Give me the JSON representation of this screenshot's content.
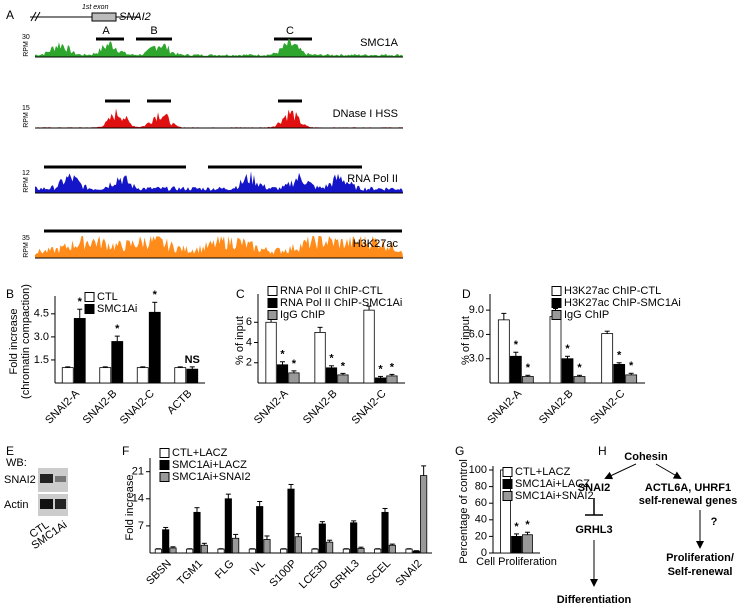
{
  "panel_labels": [
    "A",
    "B",
    "C",
    "D",
    "E",
    "F",
    "G",
    "H"
  ],
  "gene_header": {
    "exon_label": "1st exon",
    "gene": "SNAI2",
    "regions": [
      "A",
      "B",
      "C"
    ]
  },
  "tracks": [
    {
      "name": "SMC1A",
      "scale": 30,
      "unit": "RPM",
      "color": "#2ea62e"
    },
    {
      "name": "DNase I HSS",
      "scale": 15,
      "unit": "RPM",
      "color": "#e01010"
    },
    {
      "name": "RNA Pol II",
      "scale": 12,
      "unit": "RPM",
      "color": "#1414c8"
    },
    {
      "name": "H3K27ac",
      "scale": 35,
      "unit": "RPM",
      "color": "#ff8c1a"
    }
  ],
  "chart_data": [
    {
      "type": "bar",
      "ylabel": [
        "Fold increase",
        "(chromatin compaction)"
      ],
      "categories": [
        "SNAI2-A",
        "SNAI2-B",
        "SNAI2-C",
        "ACTB"
      ],
      "series": [
        {
          "name": "CTL",
          "color": "#ffffff",
          "values": [
            1,
            1,
            1,
            1
          ],
          "errors": [
            0.05,
            0.05,
            0.05,
            0.05
          ]
        },
        {
          "name": "SMC1Ai",
          "color": "#000000",
          "values": [
            4.2,
            2.7,
            4.6,
            0.9
          ],
          "errors": [
            0.6,
            0.35,
            0.65,
            0.15
          ],
          "significance": [
            "*",
            "*",
            "*",
            "NS"
          ]
        }
      ],
      "ylim": [
        0,
        5.4
      ],
      "yticks": [
        1.5,
        {
          "value": 3,
          "label": "3.0"
        },
        4.5
      ]
    },
    {
      "type": "bar",
      "ylabel": [
        "% of input"
      ],
      "categories": [
        "SNAI2-A",
        "SNAI2-B",
        "SNAI2-C"
      ],
      "series": [
        {
          "name": "RNA Pol II ChIP-CTL",
          "color": "#ffffff",
          "values": [
            6,
            5,
            7.2
          ],
          "errors": [
            0.4,
            0.5,
            0.4
          ]
        },
        {
          "name": "RNA Pol II ChIP-SMC1Ai",
          "color": "#000000",
          "values": [
            1.8,
            1.5,
            0.5
          ],
          "errors": [
            0.3,
            0.2,
            0.15
          ],
          "significance": [
            "*",
            "*",
            "*"
          ]
        },
        {
          "name": "IgG ChIP",
          "color": "#999999",
          "values": [
            1,
            0.8,
            0.7
          ],
          "errors": [
            0.2,
            0.15,
            0.15
          ],
          "significance": [
            "*",
            "*",
            "*"
          ]
        }
      ],
      "ylim": [
        0,
        8.4
      ],
      "yticks": [
        2,
        4,
        6
      ]
    },
    {
      "type": "bar",
      "ylabel": [
        "% of input"
      ],
      "categories": [
        "SNAI2-A",
        "SNAI2-B",
        "SNAI2-C"
      ],
      "series": [
        {
          "name": "H3K27ac ChIP-CTL",
          "color": "#ffffff",
          "values": [
            7.8,
            8.2,
            6.1
          ],
          "errors": [
            0.8,
            1,
            0.3
          ]
        },
        {
          "name": "H3K27ac ChIP-SMC1Ai",
          "color": "#000000",
          "values": [
            3.3,
            3,
            2.3
          ],
          "errors": [
            0.5,
            0.3,
            0.2
          ],
          "significance": [
            "*",
            "*",
            "*"
          ]
        },
        {
          "name": "IgG ChIP",
          "color": "#999999",
          "values": [
            0.8,
            0.8,
            1
          ],
          "errors": [
            0.15,
            0.15,
            0.2
          ],
          "significance": [
            "*",
            "*",
            "*"
          ]
        }
      ],
      "ylim": [
        0,
        10.5
      ],
      "yticks": [
        {
          "value": 3,
          "label": "3.0"
        },
        {
          "value": 6,
          "label": "6.0"
        },
        {
          "value": 9,
          "label": "9.0"
        }
      ]
    },
    {
      "type": "bar",
      "ylabel": [
        "Fold increase"
      ],
      "categories": [
        "SBSN",
        "TGM1",
        "FLG",
        "IVL",
        "S100P",
        "LCE3D",
        "GRHL3",
        "SCEL",
        "SNAI2"
      ],
      "series": [
        {
          "name": "CTL+LACZ",
          "color": "#ffffff",
          "values": [
            1,
            1,
            1,
            1,
            1,
            1,
            1,
            1,
            1
          ],
          "errors": [
            0.1,
            0.1,
            0.1,
            0.1,
            0.1,
            0.1,
            0.1,
            0.1,
            0.1
          ]
        },
        {
          "name": "SMC1Ai+LACZ",
          "color": "#000000",
          "values": [
            6,
            10.5,
            14,
            12,
            16.5,
            7.5,
            7.8,
            10.5,
            0.5
          ],
          "errors": [
            0.6,
            1.2,
            1.2,
            1.3,
            1.2,
            0.6,
            0.5,
            1,
            0.1
          ]
        },
        {
          "name": "SMC1Ai+SNAI2",
          "color": "#999999",
          "values": [
            1.3,
            2,
            3.8,
            3.5,
            4.2,
            2.8,
            1.2,
            2,
            20
          ],
          "errors": [
            0.3,
            0.5,
            1,
            0.9,
            0.8,
            0.5,
            0.3,
            0.3,
            2.5
          ]
        }
      ],
      "ylim": [
        0,
        23.5
      ],
      "yticks": [
        7,
        14,
        21
      ]
    },
    {
      "type": "bar",
      "ylabel": [
        "Percentage of control"
      ],
      "categories": [
        "Cell Proliferation"
      ],
      "series": [
        {
          "name": "CTL+LACZ",
          "color": "#ffffff",
          "values": [
            100
          ],
          "errors": [
            0.5
          ]
        },
        {
          "name": "SMC1Ai+LACZ",
          "color": "#000000",
          "values": [
            20
          ],
          "errors": [
            3
          ],
          "significance": [
            "*"
          ]
        },
        {
          "name": "SMC1Ai+SNAI2",
          "color": "#999999",
          "values": [
            22
          ],
          "errors": [
            3
          ],
          "significance": [
            "*"
          ]
        }
      ],
      "ylim": [
        0,
        100
      ],
      "yticks": [
        0,
        20,
        40,
        60,
        80,
        100
      ]
    }
  ],
  "western_blot": {
    "title": "WB:",
    "rows": [
      "SNAI2",
      "Actin"
    ],
    "lanes": [
      "CTL",
      "SMC1Ai"
    ]
  },
  "diagram": {
    "cohesin": "Cohesin",
    "snai2": "SNAI2",
    "targets": [
      "ACTL6A, UHRF1",
      "self-renewal genes"
    ],
    "grhl3": "GRHL3",
    "unknown": "?",
    "outcome": [
      "Proliferation/",
      "Self-renewal"
    ],
    "differentiation": "Differentiation"
  }
}
